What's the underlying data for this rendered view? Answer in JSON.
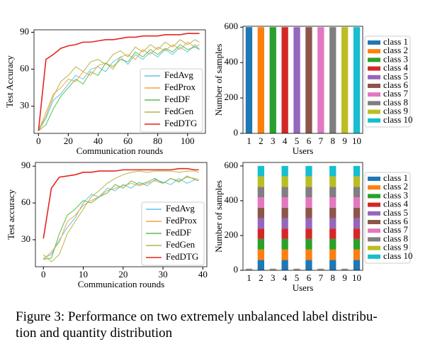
{
  "chart_data": [
    {
      "type": "line",
      "xlabel": "Communication rounds",
      "ylabel": "Test Accuracy",
      "x": [
        0,
        5,
        10,
        15,
        20,
        25,
        30,
        35,
        40,
        45,
        50,
        55,
        60,
        65,
        70,
        75,
        80,
        85,
        90,
        95,
        100,
        105,
        108
      ],
      "xlim": [
        -3,
        112
      ],
      "xticks": [
        0,
        20,
        40,
        60,
        80,
        100
      ],
      "ylim": [
        8,
        92
      ],
      "yticks": [
        30,
        60,
        90
      ],
      "legend": "lower right",
      "series": [
        {
          "name": "FedAvg",
          "color": "#61c4e8",
          "values": [
            10,
            20,
            35,
            40,
            48,
            55,
            52,
            60,
            62,
            58,
            66,
            70,
            64,
            72,
            68,
            74,
            70,
            76,
            72,
            78,
            74,
            80,
            76
          ]
        },
        {
          "name": "FedProx",
          "color": "#f5a442",
          "values": [
            10,
            25,
            40,
            45,
            52,
            50,
            58,
            55,
            63,
            65,
            60,
            70,
            72,
            68,
            76,
            72,
            78,
            75,
            80,
            76,
            82,
            78,
            80
          ]
        },
        {
          "name": "FedDF",
          "color": "#5cbf4f",
          "values": [
            10,
            15,
            28,
            38,
            45,
            52,
            48,
            58,
            55,
            65,
            62,
            68,
            66,
            74,
            70,
            76,
            72,
            77,
            74,
            80,
            76,
            78,
            76
          ]
        },
        {
          "name": "FedGen",
          "color": "#b5b545",
          "values": [
            10,
            22,
            38,
            50,
            55,
            62,
            58,
            66,
            68,
            64,
            72,
            75,
            70,
            78,
            74,
            80,
            76,
            82,
            78,
            84,
            80,
            84,
            82
          ]
        },
        {
          "name": "FedDTG",
          "color": "#e8251f",
          "values": [
            10,
            68,
            72,
            77,
            79,
            80,
            82,
            82,
            83,
            84,
            84,
            85,
            86,
            86,
            87,
            87,
            87,
            88,
            88,
            88,
            89,
            89,
            89
          ]
        }
      ]
    },
    {
      "type": "stacked_bar",
      "xlabel": "Users",
      "ylabel": "Number of samples",
      "categories": [
        "1",
        "2",
        "3",
        "4",
        "5",
        "6",
        "7",
        "8",
        "9",
        "10"
      ],
      "ylim": [
        0,
        605
      ],
      "yticks": [
        0,
        200,
        400,
        600
      ],
      "legend": "right",
      "series": [
        {
          "name": "class 1",
          "color": "#1f77b4",
          "values": [
            600,
            0,
            0,
            0,
            0,
            0,
            0,
            0,
            0,
            0
          ]
        },
        {
          "name": "class 2",
          "color": "#ff7f0e",
          "values": [
            0,
            600,
            0,
            0,
            0,
            0,
            0,
            0,
            0,
            0
          ]
        },
        {
          "name": "class 3",
          "color": "#2ca02c",
          "values": [
            0,
            0,
            600,
            0,
            0,
            0,
            0,
            0,
            0,
            0
          ]
        },
        {
          "name": "class 4",
          "color": "#d62728",
          "values": [
            0,
            0,
            0,
            600,
            0,
            0,
            0,
            0,
            0,
            0
          ]
        },
        {
          "name": "class 5",
          "color": "#9467bd",
          "values": [
            0,
            0,
            0,
            0,
            600,
            0,
            0,
            0,
            0,
            0
          ]
        },
        {
          "name": "class 6",
          "color": "#8c564b",
          "values": [
            0,
            0,
            0,
            0,
            0,
            600,
            0,
            0,
            0,
            0
          ]
        },
        {
          "name": "class 7",
          "color": "#e377c2",
          "values": [
            0,
            0,
            0,
            0,
            0,
            0,
            600,
            0,
            0,
            0
          ]
        },
        {
          "name": "class 8",
          "color": "#7f7f7f",
          "values": [
            0,
            0,
            0,
            0,
            0,
            0,
            0,
            600,
            0,
            0
          ]
        },
        {
          "name": "class 9",
          "color": "#bcbd22",
          "values": [
            0,
            0,
            0,
            0,
            0,
            0,
            0,
            0,
            600,
            0
          ]
        },
        {
          "name": "class 10",
          "color": "#17becf",
          "values": [
            0,
            0,
            0,
            0,
            0,
            0,
            0,
            0,
            0,
            600
          ]
        }
      ]
    },
    {
      "type": "line",
      "xlabel": "Communication rounds",
      "ylabel": "Test accuracy",
      "x": [
        0,
        2,
        4,
        6,
        8,
        10,
        12,
        14,
        16,
        18,
        20,
        22,
        24,
        26,
        28,
        30,
        32,
        34,
        36,
        38,
        39
      ],
      "xlim": [
        -2,
        41
      ],
      "xticks": [
        0,
        10,
        20,
        30,
        40
      ],
      "ylim": [
        8,
        93
      ],
      "yticks": [
        30,
        60,
        90
      ],
      "legend": "lower right",
      "series": [
        {
          "name": "FedAvg",
          "color": "#61c4e8",
          "values": [
            15,
            18,
            30,
            40,
            48,
            60,
            67,
            65,
            72,
            70,
            75,
            72,
            77,
            74,
            79,
            77,
            75,
            80,
            76,
            79,
            78
          ]
        },
        {
          "name": "FedProx",
          "color": "#f5a442",
          "values": [
            14,
            20,
            28,
            45,
            50,
            58,
            62,
            65,
            70,
            72,
            74,
            76,
            74,
            76,
            78,
            76,
            80,
            78,
            81,
            80,
            79
          ]
        },
        {
          "name": "FedDF",
          "color": "#5cbf4f",
          "values": [
            14,
            15,
            35,
            50,
            55,
            62,
            60,
            65,
            68,
            75,
            72,
            78,
            75,
            77,
            80,
            76,
            80,
            77,
            82,
            79,
            78
          ]
        },
        {
          "name": "FedGen",
          "color": "#b5b545",
          "values": [
            18,
            12,
            18,
            35,
            45,
            55,
            65,
            70,
            76,
            80,
            83,
            85,
            86,
            85,
            86,
            86,
            86,
            85,
            86,
            86,
            85
          ]
        },
        {
          "name": "FedDTG",
          "color": "#e8251f",
          "values": [
            31,
            72,
            81,
            82,
            83,
            85,
            85,
            86,
            86,
            86,
            87,
            87,
            87,
            87,
            87,
            87,
            87,
            88,
            88,
            87,
            87
          ]
        }
      ]
    },
    {
      "type": "stacked_bar",
      "xlabel": "Users",
      "ylabel": "Number of samples",
      "categories": [
        "1",
        "2",
        "3",
        "4",
        "5",
        "6",
        "7",
        "8",
        "9",
        "10"
      ],
      "ylim": [
        0,
        620
      ],
      "yticks": [
        0,
        200,
        400,
        600
      ],
      "legend": "right",
      "series": [
        {
          "name": "class 1",
          "color": "#1f77b4",
          "values": [
            1,
            60,
            1,
            60,
            1,
            60,
            1,
            60,
            1,
            60
          ]
        },
        {
          "name": "class 2",
          "color": "#ff7f0e",
          "values": [
            1,
            60,
            1,
            60,
            1,
            60,
            1,
            60,
            1,
            60
          ]
        },
        {
          "name": "class 3",
          "color": "#2ca02c",
          "values": [
            1,
            60,
            1,
            60,
            1,
            60,
            1,
            60,
            1,
            60
          ]
        },
        {
          "name": "class 4",
          "color": "#d62728",
          "values": [
            1,
            60,
            1,
            60,
            1,
            60,
            1,
            60,
            1,
            60
          ]
        },
        {
          "name": "class 5",
          "color": "#9467bd",
          "values": [
            1,
            60,
            1,
            60,
            1,
            60,
            1,
            60,
            1,
            60
          ]
        },
        {
          "name": "class 6",
          "color": "#8c564b",
          "values": [
            1,
            60,
            1,
            60,
            1,
            60,
            1,
            60,
            1,
            60
          ]
        },
        {
          "name": "class 7",
          "color": "#e377c2",
          "values": [
            1,
            60,
            1,
            60,
            1,
            60,
            1,
            60,
            1,
            60
          ]
        },
        {
          "name": "class 8",
          "color": "#7f7f7f",
          "values": [
            1,
            60,
            1,
            60,
            1,
            60,
            1,
            60,
            1,
            60
          ]
        },
        {
          "name": "class 9",
          "color": "#bcbd22",
          "values": [
            1,
            60,
            1,
            60,
            1,
            60,
            1,
            60,
            1,
            60
          ]
        },
        {
          "name": "class 10",
          "color": "#17becf",
          "values": [
            1,
            60,
            1,
            60,
            1,
            60,
            1,
            60,
            1,
            60
          ]
        }
      ]
    }
  ],
  "caption": {
    "lines": [
      "Figure 3: Performance on two extremely unbalanced label distribu-",
      "tion and quantity distribution"
    ]
  }
}
